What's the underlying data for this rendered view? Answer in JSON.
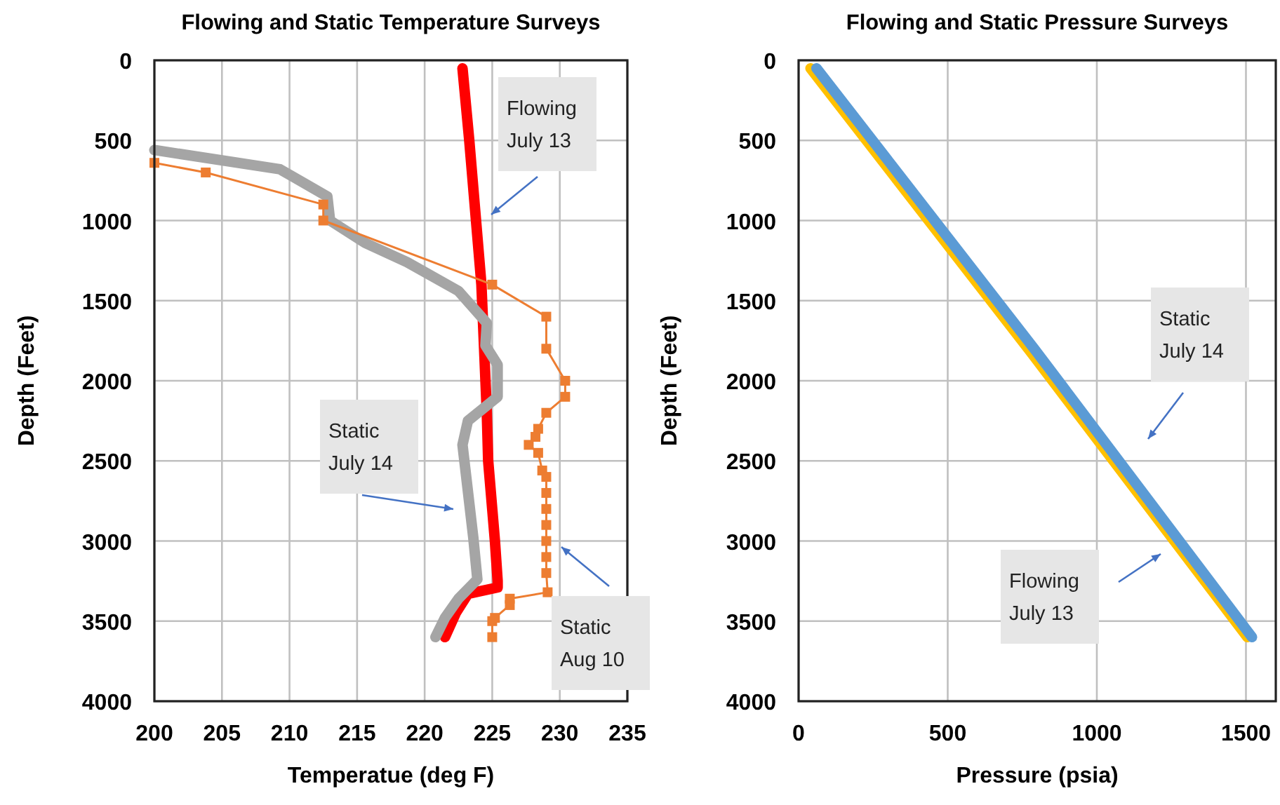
{
  "chart_data": [
    {
      "type": "line",
      "title": "Flowing and Static Temperature Surveys",
      "xlabel": "Temperatue (deg F)",
      "ylabel": "Depth (Feet)",
      "xlim": [
        200,
        235
      ],
      "xticks": [
        200,
        205,
        210,
        215,
        220,
        225,
        230,
        235
      ],
      "ylim": [
        4000,
        0
      ],
      "yticks": [
        0,
        500,
        1000,
        1500,
        2000,
        2500,
        3000,
        3500,
        4000
      ],
      "grid": true,
      "marker": "none",
      "series": [
        {
          "color": "#ff0000",
          "x": [
            222.8,
            223.3,
            223.8,
            224.2,
            224.4,
            224.6,
            224.7,
            225.0,
            225.2,
            225.4,
            225.4,
            223.2,
            222.3,
            221.5
          ],
          "values": [
            50,
            500,
            1000,
            1400,
            1800,
            2200,
            2500,
            2800,
            3000,
            3250,
            3290,
            3330,
            3450,
            3600
          ]
        },
        {
          "color": "#a5a5a5",
          "x": [
            200,
            209.3,
            212.8,
            213.0,
            215.6,
            218.7,
            222.5,
            224.6,
            224.5,
            225.4,
            225.4,
            223.2,
            222.8,
            223.6,
            223.9,
            222.5,
            221.5,
            220.8
          ],
          "values": [
            560,
            680,
            850,
            1000,
            1140,
            1260,
            1440,
            1640,
            1780,
            1900,
            2100,
            2250,
            2400,
            2980,
            3240,
            3360,
            3480,
            3600
          ]
        },
        {
          "color": "#ed7d31",
          "marker": "square",
          "x": [
            200,
            203.8,
            212.5,
            212.5,
            225,
            229,
            229,
            230.4,
            230.4,
            229,
            228.4,
            228.2,
            227.7,
            228.4,
            228.7,
            229,
            229,
            229,
            229,
            229,
            229,
            229,
            229.1,
            226.3,
            226.3,
            225.2,
            225,
            225
          ],
          "values": [
            640,
            700,
            900,
            1000,
            1400,
            1600,
            1800,
            2000,
            2100,
            2200,
            2300,
            2350,
            2400,
            2450,
            2560,
            2600,
            2700,
            2800,
            2900,
            3000,
            3100,
            3200,
            3320,
            3360,
            3400,
            3480,
            3500,
            3600
          ]
        }
      ],
      "annotations": [
        "Flowing\nJuly 13",
        "Static\nJuly 14",
        "Static\nAug 10"
      ]
    },
    {
      "type": "line",
      "title": "Flowing and Static Pressure Surveys",
      "xlabel": "Pressure (psia)",
      "ylabel": "Depth (Feet)",
      "xlim": [
        0,
        1600
      ],
      "xticks": [
        0,
        500,
        1000,
        1500
      ],
      "ylim": [
        4000,
        0
      ],
      "yticks": [
        0,
        500,
        1000,
        1500,
        2000,
        2500,
        3000,
        3500,
        4000
      ],
      "grid": true,
      "marker": "none",
      "series": [
        {
          "color": "#ffc000",
          "x": [
            40,
            770,
            1505
          ],
          "values": [
            50,
            1800,
            3600
          ]
        },
        {
          "color": "#5b9bd5",
          "x": [
            60,
            790,
            1520
          ],
          "values": [
            50,
            1800,
            3600
          ]
        }
      ],
      "annotations": [
        "Static\nJuly 14",
        "Flowing\nJuly 13"
      ]
    }
  ]
}
